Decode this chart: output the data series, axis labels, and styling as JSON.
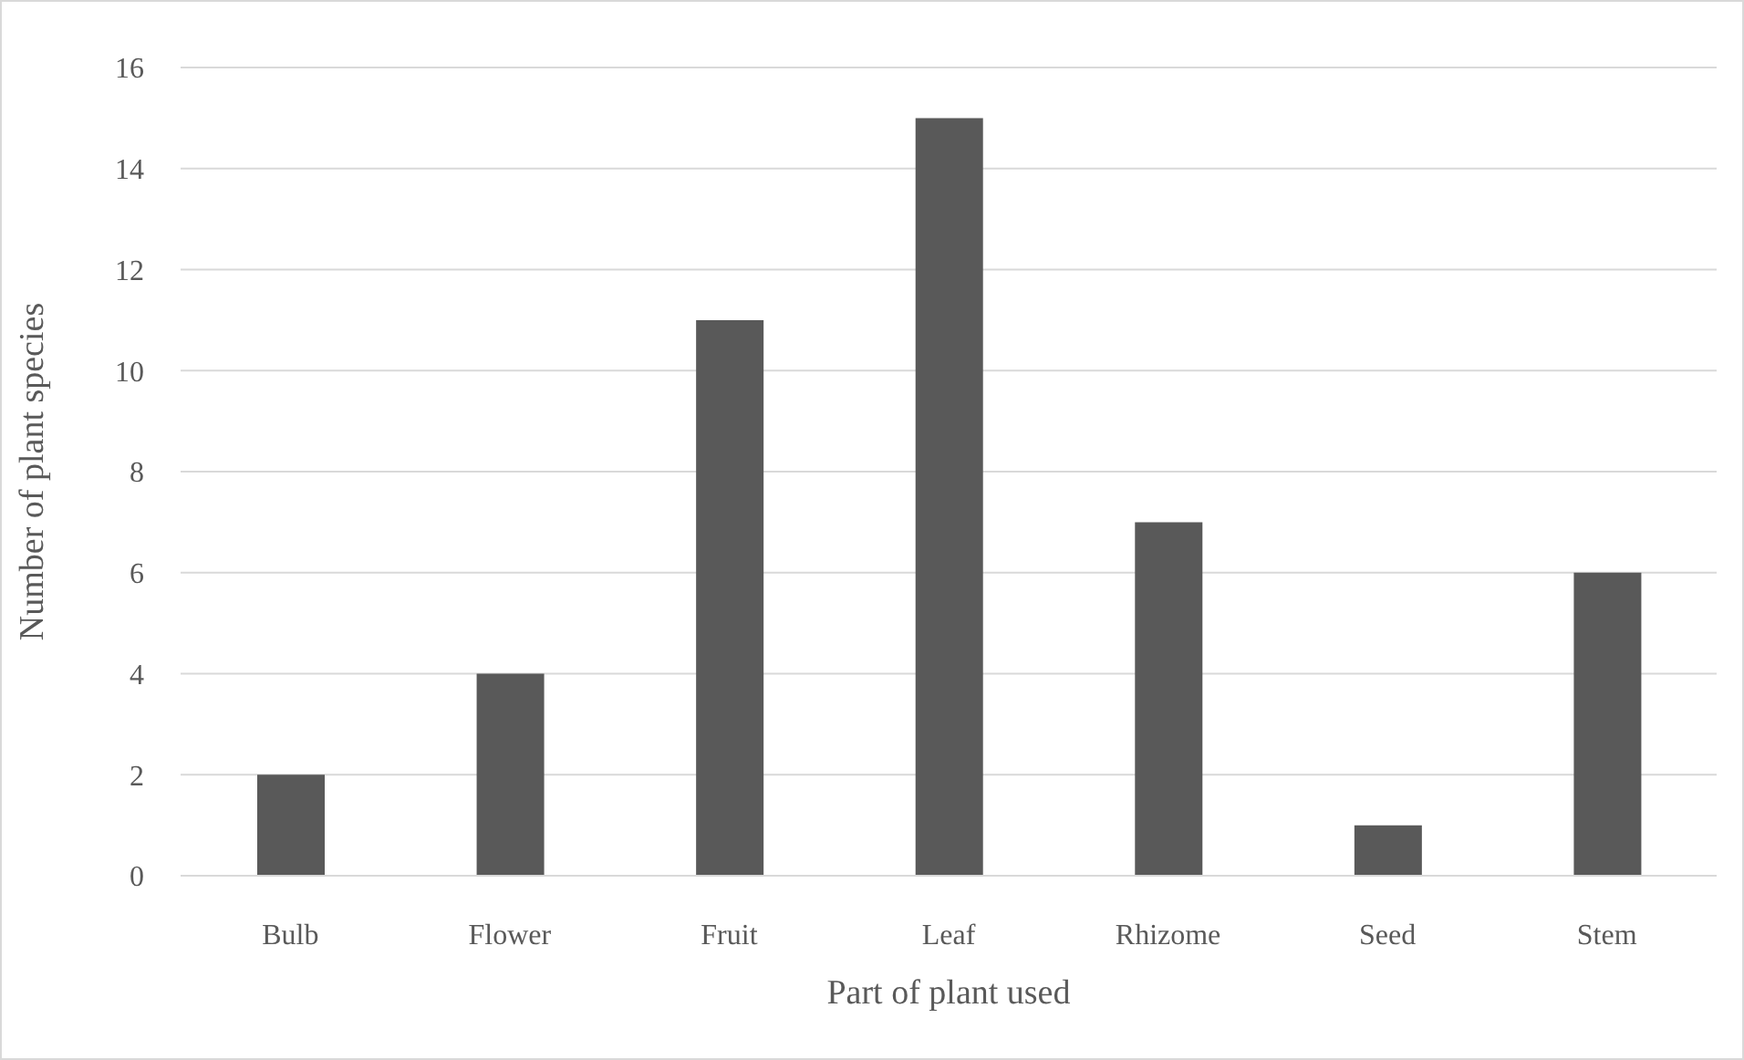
{
  "chart_data": {
    "type": "bar",
    "xlabel": "Part of plant used",
    "ylabel": "Number of plant species",
    "categories": [
      "Bulb",
      "Flower",
      "Fruit",
      "Leaf",
      "Rhizome",
      "Seed",
      "Stem"
    ],
    "values": [
      2,
      4,
      11,
      15,
      7,
      1,
      6
    ],
    "color": "#595959",
    "ylim": [
      0,
      16
    ],
    "yticks": [
      0,
      2,
      4,
      6,
      8,
      10,
      12,
      14,
      16
    ],
    "grid": "y"
  }
}
